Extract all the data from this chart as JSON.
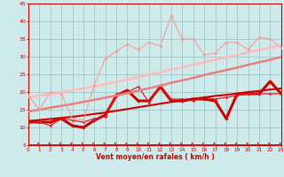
{
  "x": [
    0,
    1,
    2,
    3,
    4,
    5,
    6,
    7,
    8,
    9,
    10,
    11,
    12,
    13,
    14,
    15,
    16,
    17,
    18,
    19,
    20,
    21,
    22,
    23
  ],
  "series": [
    {
      "name": "line1_dark_thick",
      "color": "#cc0000",
      "lw": 2.2,
      "marker": "D",
      "ms": 2.0,
      "values": [
        11.5,
        11.5,
        11.5,
        12.5,
        10.5,
        10.0,
        12.0,
        13.5,
        19.0,
        20.5,
        17.5,
        17.5,
        21.5,
        17.5,
        17.5,
        18.0,
        18.0,
        17.5,
        12.5,
        19.5,
        19.5,
        19.5,
        23.0,
        19.5
      ]
    },
    {
      "name": "line2_red_thin",
      "color": "#dd2222",
      "lw": 0.9,
      "marker": "D",
      "ms": 1.8,
      "values": [
        12.0,
        11.5,
        10.5,
        12.5,
        12.0,
        11.5,
        12.5,
        13.0,
        19.5,
        20.0,
        21.5,
        17.0,
        22.0,
        18.0,
        18.0,
        17.5,
        18.5,
        18.0,
        18.5,
        19.0,
        19.5,
        19.5,
        19.5,
        19.5
      ]
    },
    {
      "name": "line3_smooth_dark_red",
      "color": "#cc0000",
      "lw": 1.5,
      "marker": null,
      "ms": 0,
      "values": [
        11.8,
        12.1,
        12.4,
        12.7,
        13.0,
        13.4,
        13.8,
        14.2,
        14.7,
        15.2,
        15.7,
        16.2,
        16.7,
        17.2,
        17.7,
        18.1,
        18.5,
        18.9,
        19.2,
        19.6,
        20.0,
        20.3,
        20.7,
        21.0
      ]
    },
    {
      "name": "line4_smooth_salmon",
      "color": "#e88080",
      "lw": 1.8,
      "marker": null,
      "ms": 0,
      "values": [
        14.5,
        15.0,
        15.6,
        16.1,
        16.6,
        17.2,
        17.8,
        18.4,
        19.0,
        19.7,
        20.4,
        21.1,
        21.8,
        22.6,
        23.3,
        24.0,
        24.8,
        25.5,
        26.2,
        26.9,
        27.7,
        28.4,
        29.1,
        29.9
      ]
    },
    {
      "name": "line5_smooth_light_pink",
      "color": "#ffbbbb",
      "lw": 1.8,
      "marker": null,
      "ms": 0,
      "values": [
        18.5,
        19.0,
        19.5,
        20.0,
        20.5,
        21.0,
        21.6,
        22.2,
        22.8,
        23.5,
        24.2,
        24.9,
        25.6,
        26.3,
        27.0,
        27.7,
        28.4,
        29.1,
        29.8,
        30.5,
        31.2,
        31.9,
        32.5,
        33.2
      ]
    },
    {
      "name": "line6_light_pink_markers",
      "color": "#ff9999",
      "lw": 0.8,
      "marker": "D",
      "ms": 2.0,
      "values": [
        19.0,
        15.0,
        20.0,
        19.5,
        12.5,
        12.0,
        22.0,
        29.5,
        31.5,
        33.5,
        32.0,
        34.0,
        33.0,
        41.5,
        35.0,
        35.0,
        30.5,
        31.0,
        34.0,
        34.0,
        32.0,
        35.5,
        35.0,
        32.5
      ]
    }
  ],
  "xlabel": "Vent moyen/en rafales ( km/h )",
  "xlim": [
    0,
    23
  ],
  "ylim": [
    5,
    45
  ],
  "yticks": [
    5,
    10,
    15,
    20,
    25,
    30,
    35,
    40,
    45
  ],
  "xticks": [
    0,
    1,
    2,
    3,
    4,
    5,
    6,
    7,
    8,
    9,
    10,
    11,
    12,
    13,
    14,
    15,
    16,
    17,
    18,
    19,
    20,
    21,
    22,
    23
  ],
  "bg_color": "#ceeaea",
  "grid_color": "#a0c8c8",
  "axis_color": "#cc0000",
  "tick_color": "#cc0000",
  "label_color": "#cc0000"
}
